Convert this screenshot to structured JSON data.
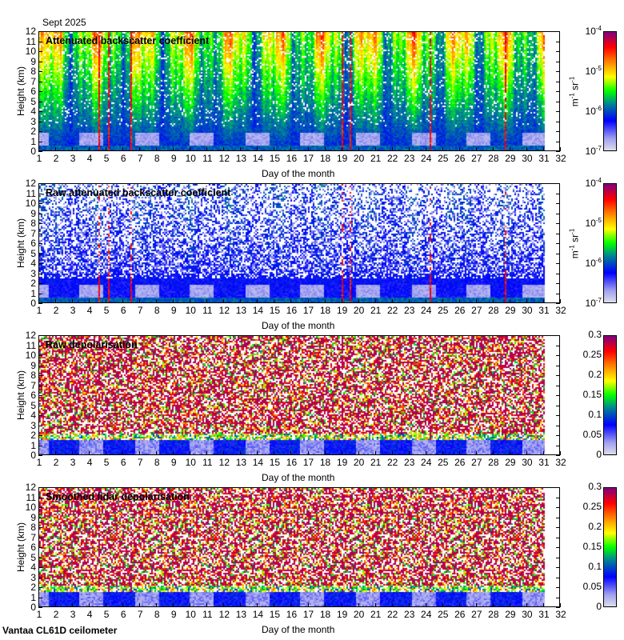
{
  "header": {
    "date": "Sept 2025"
  },
  "footer": {
    "instrument": "Vantaa CL61D ceilometer"
  },
  "colors": {
    "scale": [
      "#dcdcec",
      "#a0a0f0",
      "#0000ff",
      "#008c8c",
      "#00ff00",
      "#ffff00",
      "#ff8000",
      "#ff0000",
      "#800080"
    ]
  },
  "chart_data": [
    {
      "type": "heatmap",
      "title": "Attenuated backscatter coefficient",
      "xlabel": "Day of the month",
      "ylabel": "Height (km)",
      "xlim": [
        1,
        32
      ],
      "ylim": [
        0,
        12
      ],
      "data_x_range": [
        1,
        31
      ],
      "xticks": [
        "1",
        "2",
        "3",
        "4",
        "5",
        "6",
        "7",
        "8",
        "9",
        "10",
        "11",
        "12",
        "13",
        "14",
        "15",
        "16",
        "17",
        "18",
        "19",
        "20",
        "21",
        "22",
        "23",
        "24",
        "25",
        "26",
        "27",
        "28",
        "29",
        "30",
        "31",
        "32"
      ],
      "yticks": [
        "0",
        "1",
        "2",
        "3",
        "4",
        "5",
        "6",
        "7",
        "8",
        "9",
        "10",
        "11",
        "12"
      ],
      "colorbar": {
        "scale": "log",
        "range": [
          1e-07,
          0.0001
        ],
        "unit_parts": [
          "m",
          "-1",
          " sr",
          "-1"
        ],
        "ticks": [
          {
            "base": "10",
            "exp": "-4"
          },
          {
            "base": "10",
            "exp": "-5"
          },
          {
            "base": "10",
            "exp": "-6"
          },
          {
            "base": "10",
            "exp": "-7"
          }
        ]
      }
    },
    {
      "type": "heatmap",
      "title": "Raw attenuated backscatter coefficient",
      "xlabel": "Day of the month",
      "ylabel": "Height (km)",
      "xlim": [
        1,
        32
      ],
      "ylim": [
        0,
        12
      ],
      "data_x_range": [
        1,
        31
      ],
      "xticks": [
        "1",
        "2",
        "3",
        "4",
        "5",
        "6",
        "7",
        "8",
        "9",
        "10",
        "11",
        "12",
        "13",
        "14",
        "15",
        "16",
        "17",
        "18",
        "19",
        "20",
        "21",
        "22",
        "23",
        "24",
        "25",
        "26",
        "27",
        "28",
        "29",
        "30",
        "31",
        "32"
      ],
      "yticks": [
        "0",
        "1",
        "2",
        "3",
        "4",
        "5",
        "6",
        "7",
        "8",
        "9",
        "10",
        "11",
        "12"
      ],
      "colorbar": {
        "scale": "log",
        "range": [
          1e-07,
          0.0001
        ],
        "unit_parts": [
          "m",
          "-1",
          " sr",
          "-1"
        ],
        "ticks": [
          {
            "base": "10",
            "exp": "-4"
          },
          {
            "base": "10",
            "exp": "-5"
          },
          {
            "base": "10",
            "exp": "-6"
          },
          {
            "base": "10",
            "exp": "-7"
          }
        ]
      }
    },
    {
      "type": "heatmap",
      "title": "Raw depolarisation",
      "xlabel": "Day of the month",
      "ylabel": "Height (km)",
      "xlim": [
        1,
        32
      ],
      "ylim": [
        0,
        12
      ],
      "data_x_range": [
        1,
        31
      ],
      "xticks": [
        "1",
        "2",
        "3",
        "4",
        "5",
        "6",
        "7",
        "8",
        "9",
        "10",
        "11",
        "12",
        "13",
        "14",
        "15",
        "16",
        "17",
        "18",
        "19",
        "20",
        "21",
        "22",
        "23",
        "24",
        "25",
        "26",
        "27",
        "28",
        "29",
        "30",
        "31",
        "32"
      ],
      "yticks": [
        "0",
        "1",
        "2",
        "3",
        "4",
        "5",
        "6",
        "7",
        "8",
        "9",
        "10",
        "11",
        "12"
      ],
      "colorbar": {
        "scale": "linear",
        "range": [
          0,
          0.3
        ],
        "ticks": [
          {
            "base": "0.3"
          },
          {
            "base": "0.25"
          },
          {
            "base": "0.2"
          },
          {
            "base": "0.15"
          },
          {
            "base": "0.1"
          },
          {
            "base": "0.05"
          },
          {
            "base": "0"
          }
        ]
      }
    },
    {
      "type": "heatmap",
      "title": "Smoothed lidar depolarisation",
      "xlabel": "Day of the month",
      "ylabel": "Height (km)",
      "xlim": [
        1,
        32
      ],
      "ylim": [
        0,
        12
      ],
      "data_x_range": [
        1,
        31
      ],
      "xticks": [
        "1",
        "2",
        "3",
        "4",
        "5",
        "6",
        "7",
        "8",
        "9",
        "10",
        "11",
        "12",
        "13",
        "14",
        "15",
        "16",
        "17",
        "18",
        "19",
        "20",
        "21",
        "22",
        "23",
        "24",
        "25",
        "26",
        "27",
        "28",
        "29",
        "30",
        "31",
        "32"
      ],
      "yticks": [
        "0",
        "1",
        "2",
        "3",
        "4",
        "5",
        "6",
        "7",
        "8",
        "9",
        "10",
        "11",
        "12"
      ],
      "colorbar": {
        "scale": "linear",
        "range": [
          0,
          0.3
        ],
        "ticks": [
          {
            "base": "0.3"
          },
          {
            "base": "0.25"
          },
          {
            "base": "0.2"
          },
          {
            "base": "0.15"
          },
          {
            "base": "0.1"
          },
          {
            "base": "0.05"
          },
          {
            "base": "0"
          }
        ]
      }
    }
  ]
}
